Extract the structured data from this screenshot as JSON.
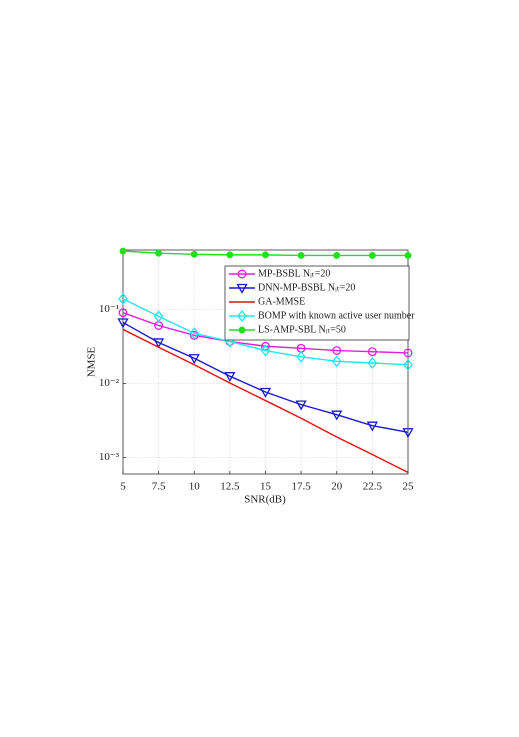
{
  "chart_data": {
    "type": "line",
    "x_label": "SNR(dB)",
    "y_label": "NMSE",
    "log_y": true,
    "grid": true,
    "legend": "upper right",
    "x": [
      5,
      7.5,
      10,
      12.5,
      15,
      17.5,
      20,
      22.5,
      25
    ],
    "xlim": [
      5,
      25
    ],
    "xticks": [
      5,
      7.5,
      10,
      12.5,
      15,
      17.5,
      20,
      22.5,
      25
    ],
    "ylim": [
      0.0006,
      0.64
    ],
    "yticks": [
      {
        "value": 0.001,
        "label": "10⁻³"
      },
      {
        "value": 0.01,
        "label": "10⁻²"
      },
      {
        "value": 0.1,
        "label": "10⁻¹"
      }
    ],
    "series": [
      {
        "name": "MP-BSBL Nᵢₜ=20",
        "color": "#e020e0",
        "marker": "circle",
        "values": [
          0.091,
          0.061,
          0.045,
          0.037,
          0.032,
          0.03,
          0.028,
          0.027,
          0.026
        ]
      },
      {
        "name": "DNN-MP-BSBL Nᵢₜ=20",
        "color": "#1a1ad0",
        "marker": "triangle-down",
        "values": [
          0.067,
          0.036,
          0.022,
          0.0126,
          0.0077,
          0.0052,
          0.0038,
          0.0027,
          0.0022
        ]
      },
      {
        "name": "GA-MMSE",
        "color": "#e01010",
        "marker": "none",
        "values": [
          0.054,
          0.031,
          0.018,
          0.0102,
          0.0059,
          0.0034,
          0.0019,
          0.0011,
          0.00063
        ]
      },
      {
        "name": "BOMP with known active user number",
        "color": "#20e8f0",
        "marker": "diamond",
        "values": [
          0.14,
          0.081,
          0.048,
          0.037,
          0.028,
          0.023,
          0.02,
          0.019,
          0.018
        ]
      },
      {
        "name": "LS-AMP-SBL Nᵢₜ=50",
        "color": "#20e020",
        "marker": "star",
        "values": [
          0.62,
          0.58,
          0.56,
          0.55,
          0.55,
          0.54,
          0.54,
          0.54,
          0.54
        ]
      }
    ]
  }
}
